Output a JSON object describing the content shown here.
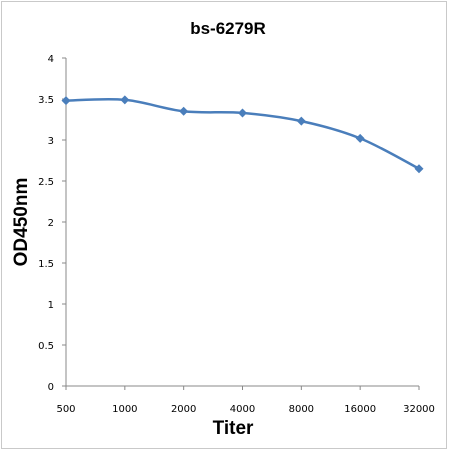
{
  "chart_data": {
    "type": "line",
    "title": "bs-6279R",
    "xlabel": "Titer",
    "ylabel": "OD450nm",
    "categories": [
      "500",
      "1000",
      "2000",
      "4000",
      "8000",
      "16000",
      "32000"
    ],
    "series": [
      {
        "values": [
          3.48,
          3.49,
          3.35,
          3.33,
          3.23,
          3.02,
          2.65
        ],
        "color": "#4a7ebb"
      }
    ],
    "ylim": [
      0,
      4
    ],
    "yticks": [
      "0",
      "0.5",
      "1",
      "1.5",
      "2",
      "2.5",
      "3",
      "3.5",
      "4"
    ],
    "yticks_values": [
      0,
      0.5,
      1,
      1.5,
      2,
      2.5,
      3,
      3.5,
      4
    ],
    "grid": false,
    "marker": "diamond",
    "smooth": true
  }
}
